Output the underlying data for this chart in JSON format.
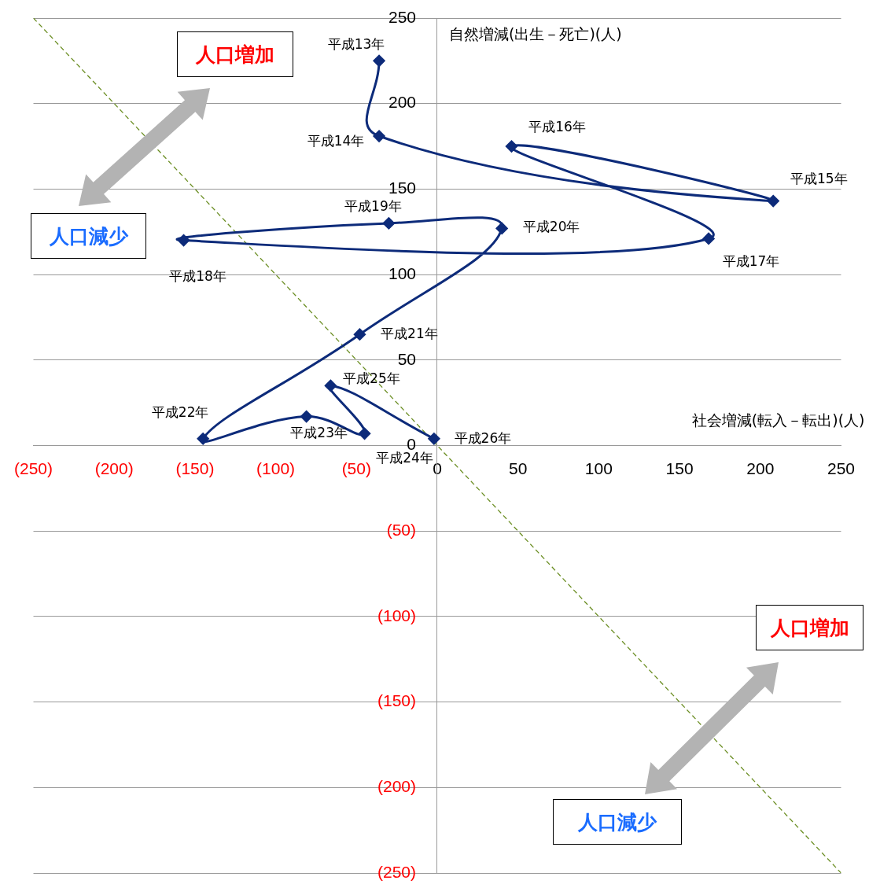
{
  "chart_data": {
    "type": "line",
    "xlabel": "社会増減(転入－転出)(人)",
    "ylabel": "自然増減(出生－死亡)(人)",
    "xlim": [
      -250,
      250
    ],
    "ylim": [
      -250,
      250
    ],
    "xticks": [
      {
        "value": -250,
        "label": "(250)"
      },
      {
        "value": -200,
        "label": "(200)"
      },
      {
        "value": -150,
        "label": "(150)"
      },
      {
        "value": -100,
        "label": "(100)"
      },
      {
        "value": -50,
        "label": "(50)"
      },
      0,
      50,
      100,
      150,
      200,
      250
    ],
    "yticks": [
      {
        "value": -250,
        "label": "(250)"
      },
      {
        "value": -200,
        "label": "(200)"
      },
      {
        "value": -150,
        "label": "(150)"
      },
      {
        "value": -100,
        "label": "(100)"
      },
      {
        "value": -50,
        "label": "(50)"
      },
      0,
      50,
      100,
      150,
      200,
      250
    ],
    "grid": "y",
    "legend": false,
    "series": [
      {
        "color": "#0d2b7a",
        "marker": "diamond",
        "x": [
          -36,
          -36,
          208,
          46,
          168,
          -157,
          -30,
          40,
          -48,
          -145,
          -81,
          -45,
          -66,
          -2
        ],
        "values": [
          225,
          181,
          143,
          175,
          121,
          120,
          130,
          127,
          65,
          4,
          17,
          7,
          35,
          4
        ]
      },
      {
        "color": "#6b8e23",
        "marker": "none",
        "line_style": "dashed",
        "x": [
          -250,
          250
        ],
        "values": [
          250,
          -250
        ]
      }
    ],
    "annotations": [
      {
        "text": "平成13年",
        "x": -36,
        "y": 225
      },
      {
        "text": "平成14年",
        "x": -36,
        "y": 181
      },
      {
        "text": "平成15年",
        "x": 208,
        "y": 143
      },
      {
        "text": "平成16年",
        "x": 46,
        "y": 175
      },
      {
        "text": "平成17年",
        "x": 168,
        "y": 121
      },
      {
        "text": "平成18年",
        "x": -157,
        "y": 120
      },
      {
        "text": "平成19年",
        "x": -30,
        "y": 130
      },
      {
        "text": "平成20年",
        "x": 40,
        "y": 127
      },
      {
        "text": "平成21年",
        "x": -48,
        "y": 65
      },
      {
        "text": "平成22年",
        "x": -145,
        "y": 4
      },
      {
        "text": "平成23年",
        "x": -81,
        "y": 17
      },
      {
        "text": "平成24年",
        "x": -45,
        "y": 7
      },
      {
        "text": "平成25年",
        "x": -66,
        "y": 35
      },
      {
        "text": "平成26年",
        "x": -2,
        "y": 4
      },
      "人口増加",
      "人口減少",
      "人口増加",
      "人口減少"
    ]
  }
}
